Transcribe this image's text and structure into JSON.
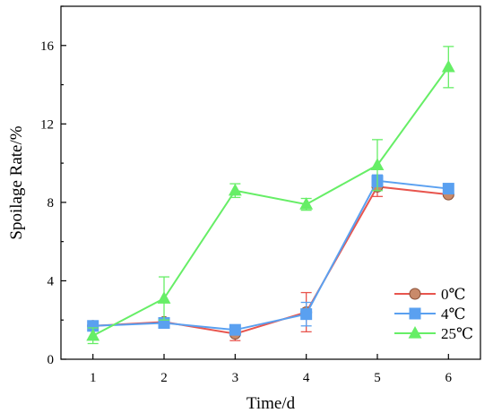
{
  "chart_data": {
    "type": "line",
    "title": "",
    "xlabel": "Time/d",
    "ylabel": "Spoilage Rate/%",
    "x": [
      1,
      2,
      3,
      4,
      5,
      6
    ],
    "xticks": [
      "1",
      "2",
      "3",
      "4",
      "5",
      "6"
    ],
    "yticks": [
      "0",
      "4",
      "8",
      "12",
      "16"
    ],
    "xlim": [
      0.55,
      6.45
    ],
    "ylim": [
      0,
      18
    ],
    "grid": false,
    "legend_position": "bottom-right",
    "series": [
      {
        "name": "0℃",
        "color": "#e8554e",
        "marker": "circle",
        "values": [
          1.7,
          1.9,
          1.3,
          2.4,
          8.8,
          8.4
        ],
        "errors": [
          0.1,
          0.15,
          0.35,
          1.0,
          0.5,
          0.1
        ]
      },
      {
        "name": "4℃",
        "color": "#5aa0f0",
        "marker": "square",
        "values": [
          1.7,
          1.85,
          1.5,
          2.3,
          9.1,
          8.7
        ],
        "errors": [
          0.1,
          0.15,
          0.25,
          0.6,
          0.3,
          0.1
        ]
      },
      {
        "name": "25℃",
        "color": "#66ee66",
        "marker": "triangle",
        "values": [
          1.2,
          3.1,
          8.6,
          7.9,
          9.9,
          14.9
        ],
        "errors": [
          0.4,
          1.1,
          0.35,
          0.3,
          1.3,
          1.05
        ]
      }
    ]
  }
}
